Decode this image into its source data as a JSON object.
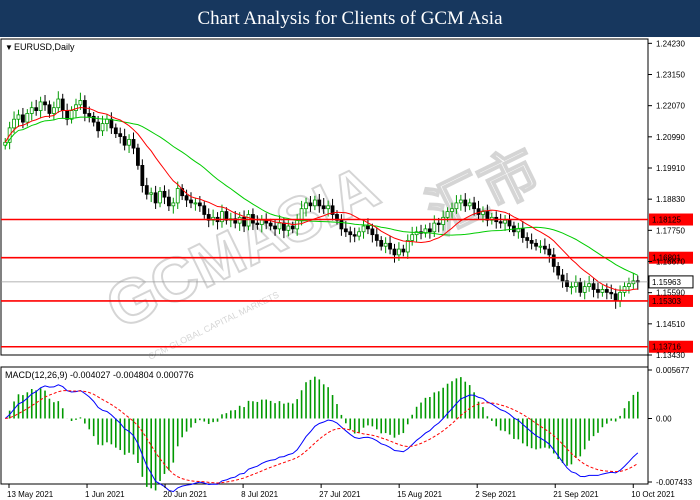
{
  "banner": {
    "title": "Chart Analysis for Clients of GCM Asia"
  },
  "watermark": {
    "brand": "GCMASIA",
    "chinese": "汇市",
    "sub": "GCM GLOBAL CAPITAL MARKETS"
  },
  "colors": {
    "banner_bg": "#17375e",
    "bull_candle": "#009900",
    "bear_candle": "#000000",
    "ma_fast": "#ff0000",
    "ma_slow": "#00cc00",
    "sr_line": "#ff0000",
    "sr_label_bg": "#ff0000",
    "price_label_bg": "#ffffff",
    "macd_line": "#0000ff",
    "signal_line": "#ff0000",
    "hist": "#009900"
  },
  "chart_data": [
    {
      "type": "candlestick",
      "title": "EURUSD,Daily",
      "ylim": [
        1.1343,
        1.2438
      ],
      "y_ticks": [
        1.2423,
        1.2315,
        1.2207,
        1.2099,
        1.1991,
        1.1883,
        1.1775,
        1.1667,
        1.1559,
        1.1451,
        1.1343
      ],
      "x_labels": [
        "13 May 2021",
        "1 Jun 2021",
        "20 Jun 2021",
        "8 Jul 2021",
        "27 Jul 2021",
        "15 Aug 2021",
        "2 Sep 2021",
        "21 Sep 2021",
        "10 Oct 2021"
      ],
      "current_price": 1.15963,
      "levels": [
        1.18125,
        1.16801,
        1.15303,
        1.13716
      ],
      "ma_fast_label": "",
      "ma_slow_label": "",
      "ohlc_close_path": [
        1.208,
        1.213,
        1.216,
        1.2175,
        1.215,
        1.218,
        1.22,
        1.219,
        1.222,
        1.221,
        1.218,
        1.22,
        1.223,
        1.219,
        1.216,
        1.219,
        1.221,
        1.2225,
        1.218,
        1.217,
        1.215,
        1.212,
        1.2145,
        1.216,
        1.213,
        1.211,
        1.21,
        1.207,
        1.209,
        1.206,
        1.2,
        1.193,
        1.19,
        1.1905,
        1.187,
        1.191,
        1.189,
        1.186,
        1.187,
        1.192,
        1.1895,
        1.188,
        1.187,
        1.187,
        1.186,
        1.183,
        1.181,
        1.182,
        1.1805,
        1.184,
        1.181,
        1.1815,
        1.18,
        1.182,
        1.179,
        1.183,
        1.18,
        1.1795,
        1.181,
        1.18,
        1.179,
        1.178,
        1.18,
        1.1775,
        1.179,
        1.178,
        1.181,
        1.185,
        1.187,
        1.186,
        1.188,
        1.186,
        1.185,
        1.186,
        1.183,
        1.181,
        1.178,
        1.177,
        1.176,
        1.1755,
        1.177,
        1.179,
        1.178,
        1.176,
        1.174,
        1.172,
        1.173,
        1.171,
        1.169,
        1.171,
        1.17,
        1.174,
        1.176,
        1.177,
        1.1765,
        1.178,
        1.177,
        1.18,
        1.1795,
        1.182,
        1.184,
        1.185,
        1.187,
        1.188,
        1.186,
        1.187,
        1.185,
        1.183,
        1.184,
        1.181,
        1.182,
        1.1805,
        1.18,
        1.181,
        1.179,
        1.177,
        1.178,
        1.175,
        1.174,
        1.173,
        1.172,
        1.172,
        1.171,
        1.169,
        1.165,
        1.162,
        1.16,
        1.158,
        1.158,
        1.1595,
        1.156,
        1.158,
        1.159,
        1.157,
        1.156,
        1.157,
        1.156,
        1.1555,
        1.153,
        1.156,
        1.158,
        1.159,
        1.16,
        1.1596
      ]
    },
    {
      "type": "macd",
      "title": "MACD(12,26,9) -0.004027 -0.004804 0.000776",
      "ylim": [
        -0.007433,
        0.005677
      ],
      "y_ticks": [
        0.005677,
        0.0,
        -0.007433
      ],
      "values": {
        "macd": -0.004027,
        "signal": -0.004804,
        "hist": 0.000776
      }
    }
  ]
}
